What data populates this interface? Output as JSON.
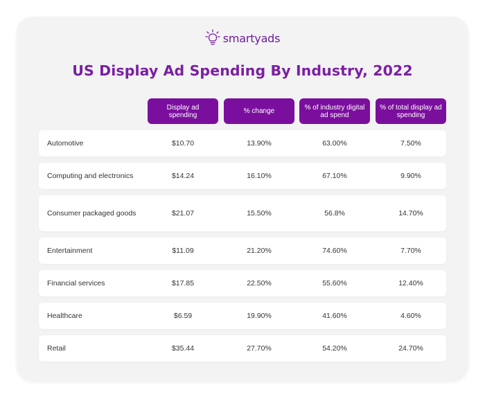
{
  "brand": {
    "name": "smartyads",
    "accent_color": "#7b0f9d",
    "title_color": "#7b1fa2",
    "logo_icon": "lightbulb-icon"
  },
  "chart_data": {
    "type": "table",
    "title": "US Display Ad Spending By Industry, 2022",
    "columns": [
      "Display ad spending",
      "% change",
      "% of industry digital ad spend",
      "% of total display ad spending"
    ],
    "rows": [
      {
        "industry": "Automotive",
        "values": [
          "$10.70",
          "13.90%",
          "63.00%",
          "7.50%"
        ]
      },
      {
        "industry": "Computing and electronics",
        "values": [
          "$14.24",
          "16.10%",
          "67.10%",
          "9.90%"
        ]
      },
      {
        "industry": "Consumer packaged goods",
        "values": [
          "$21.07",
          "15.50%",
          "56.8%",
          "14.70%"
        ]
      },
      {
        "industry": "Entertainment",
        "values": [
          "$11.09",
          "21.20%",
          "74.60%",
          "7.70%"
        ]
      },
      {
        "industry": "Financial services",
        "values": [
          "$17.85",
          "22.50%",
          "55.60%",
          "12.40%"
        ]
      },
      {
        "industry": "Healthcare",
        "values": [
          "$6.59",
          "19.90%",
          "41.60%",
          "4.60%"
        ]
      },
      {
        "industry": "Retail",
        "values": [
          "$35.44",
          "27.70%",
          "54.20%",
          "24.70%"
        ]
      }
    ]
  }
}
